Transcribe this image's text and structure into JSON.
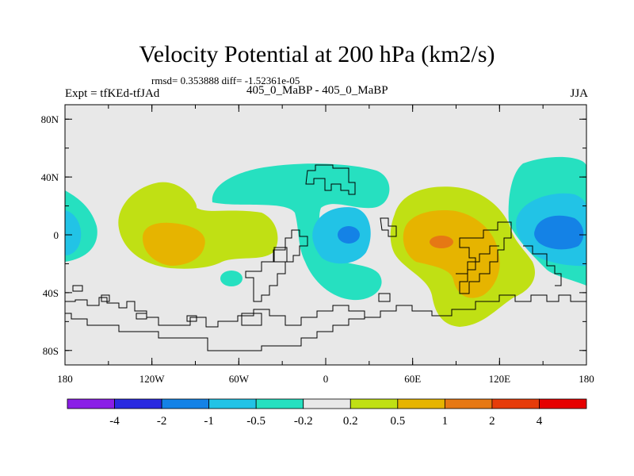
{
  "header": {
    "title": "Velocity Potential at 200 hPa (km2/s)",
    "stats": "rmsd= 0.353888 diff= -1.52361e-05",
    "expt": "Expt = tfKEd-tfJAd",
    "center_label": "405_0_MaBP - 405_0_MaBP",
    "season": "JJA"
  },
  "axes": {
    "y_ticks": [
      {
        "value": 80,
        "label": "80N"
      },
      {
        "value": 40,
        "label": "40N"
      },
      {
        "value": 0,
        "label": "0"
      },
      {
        "value": -40,
        "label": "40S"
      },
      {
        "value": -80,
        "label": "80S"
      }
    ],
    "x_ticks": [
      {
        "value": -180,
        "label": "180"
      },
      {
        "value": -120,
        "label": "120W"
      },
      {
        "value": -60,
        "label": "60W"
      },
      {
        "value": 0,
        "label": "0"
      },
      {
        "value": 60,
        "label": "60E"
      },
      {
        "value": 120,
        "label": "120E"
      },
      {
        "value": 180,
        "label": "180"
      }
    ],
    "lon_range": [
      -180,
      180
    ],
    "lat_range": [
      -90,
      90
    ]
  },
  "colorbar": {
    "colors": [
      "#8a1ee6",
      "#2a2ae0",
      "#1482e6",
      "#22c3e6",
      "#26e0c0",
      "#e8e8e8",
      "#c0e014",
      "#e6b400",
      "#e67814",
      "#e63c0a",
      "#e60000"
    ],
    "labels": [
      "-4",
      "-2",
      "-1",
      "-0.5",
      "-0.2",
      "0.2",
      "0.5",
      "1",
      "2",
      "4"
    ]
  },
  "map_colors": {
    "background": "#e8e8e8",
    "neg_02": "#26e0c0",
    "neg_05": "#22c3e6",
    "neg_1": "#1482e6",
    "pos_02": "#c0e014",
    "pos_05": "#e6b400",
    "pos_1": "#e67814",
    "coast": "#000000"
  }
}
